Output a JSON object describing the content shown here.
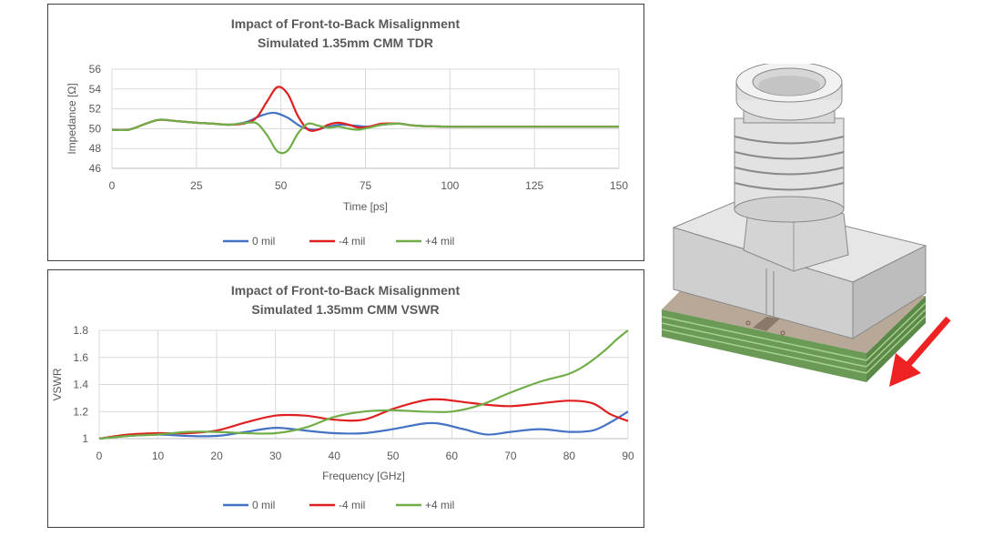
{
  "chart_data": [
    {
      "type": "line",
      "title": "Impact of Front-to-Back Misalignment",
      "subtitle": "Simulated 1.35mm CMM TDR",
      "xlabel": "Time [ps]",
      "ylabel": "Impedance [Ω]",
      "xlim": [
        0,
        150
      ],
      "ylim": [
        46,
        56
      ],
      "xticks": [
        0,
        25,
        50,
        75,
        100,
        125,
        150
      ],
      "yticks": [
        46,
        48,
        50,
        52,
        54,
        56
      ],
      "legend_position": "bottom",
      "grid": true,
      "series": [
        {
          "name": "0 mil",
          "color": "#4472c4",
          "x": [
            0,
            5,
            10,
            14,
            18,
            25,
            30,
            35,
            40,
            44,
            48,
            52,
            56,
            60,
            64,
            68,
            72,
            76,
            80,
            85,
            90,
            100,
            110,
            125,
            150
          ],
          "y": [
            49.9,
            49.9,
            50.5,
            50.9,
            50.8,
            50.6,
            50.5,
            50.4,
            50.7,
            51.3,
            51.6,
            51.1,
            50.2,
            49.9,
            50.2,
            50.4,
            50.3,
            50.2,
            50.4,
            50.5,
            50.3,
            50.2,
            50.2,
            50.2,
            50.2
          ]
        },
        {
          "name": "-4 mil",
          "color": "#e02020",
          "x": [
            0,
            5,
            10,
            14,
            18,
            25,
            30,
            35,
            40,
            43,
            46,
            49,
            52,
            55,
            58,
            61,
            64,
            67,
            70,
            73,
            76,
            80,
            85,
            90,
            100,
            110,
            125,
            150
          ],
          "y": [
            49.9,
            49.9,
            50.5,
            50.9,
            50.8,
            50.6,
            50.5,
            50.4,
            50.6,
            51.2,
            52.8,
            54.2,
            53.5,
            51.3,
            49.9,
            49.9,
            50.4,
            50.6,
            50.4,
            50.1,
            50.2,
            50.5,
            50.5,
            50.3,
            50.2,
            50.2,
            50.2,
            50.2
          ]
        },
        {
          "name": "+4 mil",
          "color": "#70ad47",
          "x": [
            0,
            5,
            10,
            14,
            18,
            25,
            30,
            35,
            40,
            43,
            46,
            49,
            52,
            55,
            58,
            61,
            64,
            67,
            70,
            73,
            76,
            80,
            85,
            90,
            100,
            110,
            125,
            150
          ],
          "y": [
            49.9,
            49.9,
            50.5,
            50.9,
            50.8,
            50.6,
            50.5,
            50.4,
            50.6,
            50.5,
            49.3,
            47.7,
            47.8,
            49.5,
            50.5,
            50.3,
            50.1,
            50.2,
            50.0,
            49.9,
            50.1,
            50.4,
            50.5,
            50.3,
            50.2,
            50.2,
            50.2,
            50.2
          ]
        }
      ]
    },
    {
      "type": "line",
      "title": "Impact of Front-to-Back Misalignment",
      "subtitle": "Simulated 1.35mm CMM VSWR",
      "xlabel": "Frequency [GHz]",
      "ylabel": "VSWR",
      "xlim": [
        0,
        90
      ],
      "ylim": [
        1,
        1.8
      ],
      "xticks": [
        0,
        10,
        20,
        30,
        40,
        50,
        60,
        70,
        80,
        90
      ],
      "yticks": [
        1,
        1.2,
        1.4,
        1.6,
        1.8
      ],
      "legend_position": "bottom",
      "grid": true,
      "series": [
        {
          "name": "0 mil",
          "color": "#4472c4",
          "x": [
            0,
            5,
            10,
            15,
            20,
            25,
            30,
            35,
            40,
            45,
            50,
            55,
            58,
            62,
            66,
            70,
            75,
            80,
            84,
            87,
            90
          ],
          "y": [
            1.0,
            1.02,
            1.03,
            1.02,
            1.02,
            1.05,
            1.08,
            1.06,
            1.04,
            1.04,
            1.07,
            1.11,
            1.11,
            1.07,
            1.03,
            1.05,
            1.07,
            1.05,
            1.06,
            1.12,
            1.2
          ]
        },
        {
          "name": "-4 mil",
          "color": "#e02020",
          "x": [
            0,
            5,
            10,
            15,
            20,
            25,
            30,
            35,
            40,
            45,
            50,
            55,
            58,
            62,
            66,
            70,
            75,
            80,
            84,
            87,
            90
          ],
          "y": [
            1.0,
            1.03,
            1.04,
            1.04,
            1.06,
            1.12,
            1.17,
            1.17,
            1.14,
            1.14,
            1.22,
            1.28,
            1.29,
            1.27,
            1.25,
            1.24,
            1.26,
            1.28,
            1.26,
            1.18,
            1.13
          ]
        },
        {
          "name": "+4 mil",
          "color": "#70ad47",
          "x": [
            0,
            5,
            10,
            15,
            20,
            25,
            30,
            35,
            40,
            45,
            50,
            55,
            60,
            65,
            70,
            75,
            80,
            83,
            86,
            88,
            90
          ],
          "y": [
            1.0,
            1.02,
            1.03,
            1.05,
            1.05,
            1.04,
            1.04,
            1.08,
            1.16,
            1.2,
            1.21,
            1.2,
            1.2,
            1.25,
            1.34,
            1.42,
            1.48,
            1.55,
            1.65,
            1.73,
            1.8
          ]
        }
      ]
    }
  ],
  "figure": {
    "icon": "connector-3d-model-icon",
    "arrow_color": "#ee2222"
  }
}
